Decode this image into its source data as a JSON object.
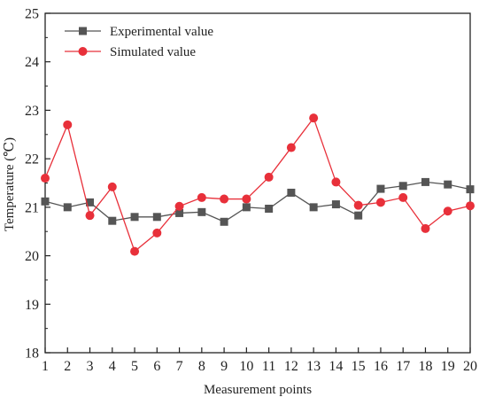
{
  "chart_data": {
    "type": "line",
    "title": "",
    "xlabel": "Measurement points",
    "ylabel": "Temperature (℃)",
    "x": [
      1,
      2,
      3,
      4,
      5,
      6,
      7,
      8,
      9,
      10,
      11,
      12,
      13,
      14,
      15,
      16,
      17,
      18,
      19,
      20
    ],
    "xlim": [
      1,
      20
    ],
    "ylim": [
      18,
      25
    ],
    "xticks": [
      "1",
      "2",
      "3",
      "4",
      "5",
      "6",
      "7",
      "8",
      "9",
      "10",
      "11",
      "12",
      "13",
      "14",
      "15",
      "16",
      "17",
      "18",
      "19",
      "20"
    ],
    "yticks": [
      "18",
      "19",
      "20",
      "21",
      "22",
      "23",
      "24",
      "25"
    ],
    "grid": false,
    "legend_position": "top-left",
    "series": [
      {
        "name": "Experimental value",
        "color": "#555555",
        "marker": "square",
        "values": [
          21.12,
          21.0,
          21.1,
          20.72,
          20.8,
          20.8,
          20.88,
          20.9,
          20.7,
          21.0,
          20.97,
          21.3,
          21.0,
          21.06,
          20.83,
          21.38,
          21.44,
          21.52,
          21.47,
          21.37
        ]
      },
      {
        "name": "Simulated value",
        "color": "#e8303a",
        "marker": "circle",
        "values": [
          21.6,
          22.7,
          20.83,
          21.42,
          20.09,
          20.47,
          21.02,
          21.2,
          21.17,
          21.17,
          21.62,
          22.23,
          22.84,
          21.52,
          21.04,
          21.1,
          21.2,
          20.56,
          20.92,
          21.03
        ]
      }
    ]
  }
}
